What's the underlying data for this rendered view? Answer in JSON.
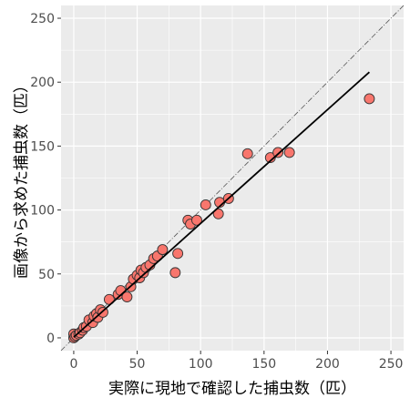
{
  "chart_data": {
    "type": "scatter",
    "xlabel": "実際に現地で確認した捕虫数（匹）",
    "ylabel": "画像から求めた捕虫数（匹）",
    "xlim": [
      -10,
      260
    ],
    "ylim": [
      -10,
      260
    ],
    "x_ticks": [
      0,
      50,
      100,
      150,
      200,
      250
    ],
    "y_ticks": [
      0,
      50,
      100,
      150,
      200,
      250
    ],
    "grid": true,
    "panel_background": "#EBEBEB",
    "point_color": "#F8766D",
    "point_outline": "#333333",
    "points": [
      {
        "x": 0,
        "y": 0
      },
      {
        "x": 0,
        "y": 3
      },
      {
        "x": 1,
        "y": 1
      },
      {
        "x": 2,
        "y": 2
      },
      {
        "x": 4,
        "y": 3
      },
      {
        "x": 5,
        "y": 4
      },
      {
        "x": 7,
        "y": 6
      },
      {
        "x": 8,
        "y": 8
      },
      {
        "x": 10,
        "y": 9
      },
      {
        "x": 12,
        "y": 14
      },
      {
        "x": 15,
        "y": 12
      },
      {
        "x": 16,
        "y": 17
      },
      {
        "x": 18,
        "y": 19
      },
      {
        "x": 19,
        "y": 16
      },
      {
        "x": 21,
        "y": 22
      },
      {
        "x": 23,
        "y": 20
      },
      {
        "x": 28,
        "y": 30
      },
      {
        "x": 35,
        "y": 34
      },
      {
        "x": 37,
        "y": 37
      },
      {
        "x": 42,
        "y": 32
      },
      {
        "x": 45,
        "y": 40
      },
      {
        "x": 47,
        "y": 46
      },
      {
        "x": 50,
        "y": 49
      },
      {
        "x": 52,
        "y": 47
      },
      {
        "x": 53,
        "y": 53
      },
      {
        "x": 55,
        "y": 51
      },
      {
        "x": 57,
        "y": 55
      },
      {
        "x": 60,
        "y": 57
      },
      {
        "x": 63,
        "y": 62
      },
      {
        "x": 66,
        "y": 64
      },
      {
        "x": 70,
        "y": 69
      },
      {
        "x": 80,
        "y": 51
      },
      {
        "x": 82,
        "y": 66
      },
      {
        "x": 90,
        "y": 92
      },
      {
        "x": 92,
        "y": 89
      },
      {
        "x": 97,
        "y": 92
      },
      {
        "x": 104,
        "y": 104
      },
      {
        "x": 114,
        "y": 97
      },
      {
        "x": 115,
        "y": 106
      },
      {
        "x": 122,
        "y": 109
      },
      {
        "x": 137,
        "y": 144
      },
      {
        "x": 155,
        "y": 141
      },
      {
        "x": 161,
        "y": 145
      },
      {
        "x": 170,
        "y": 145
      },
      {
        "x": 233,
        "y": 187
      }
    ],
    "reference_line": {
      "style": "dash-dot",
      "slope": 1,
      "intercept": 0
    },
    "fit_line": {
      "style": "solid",
      "x_range": [
        0,
        233
      ],
      "slope": 0.89,
      "intercept": 0.5
    }
  }
}
